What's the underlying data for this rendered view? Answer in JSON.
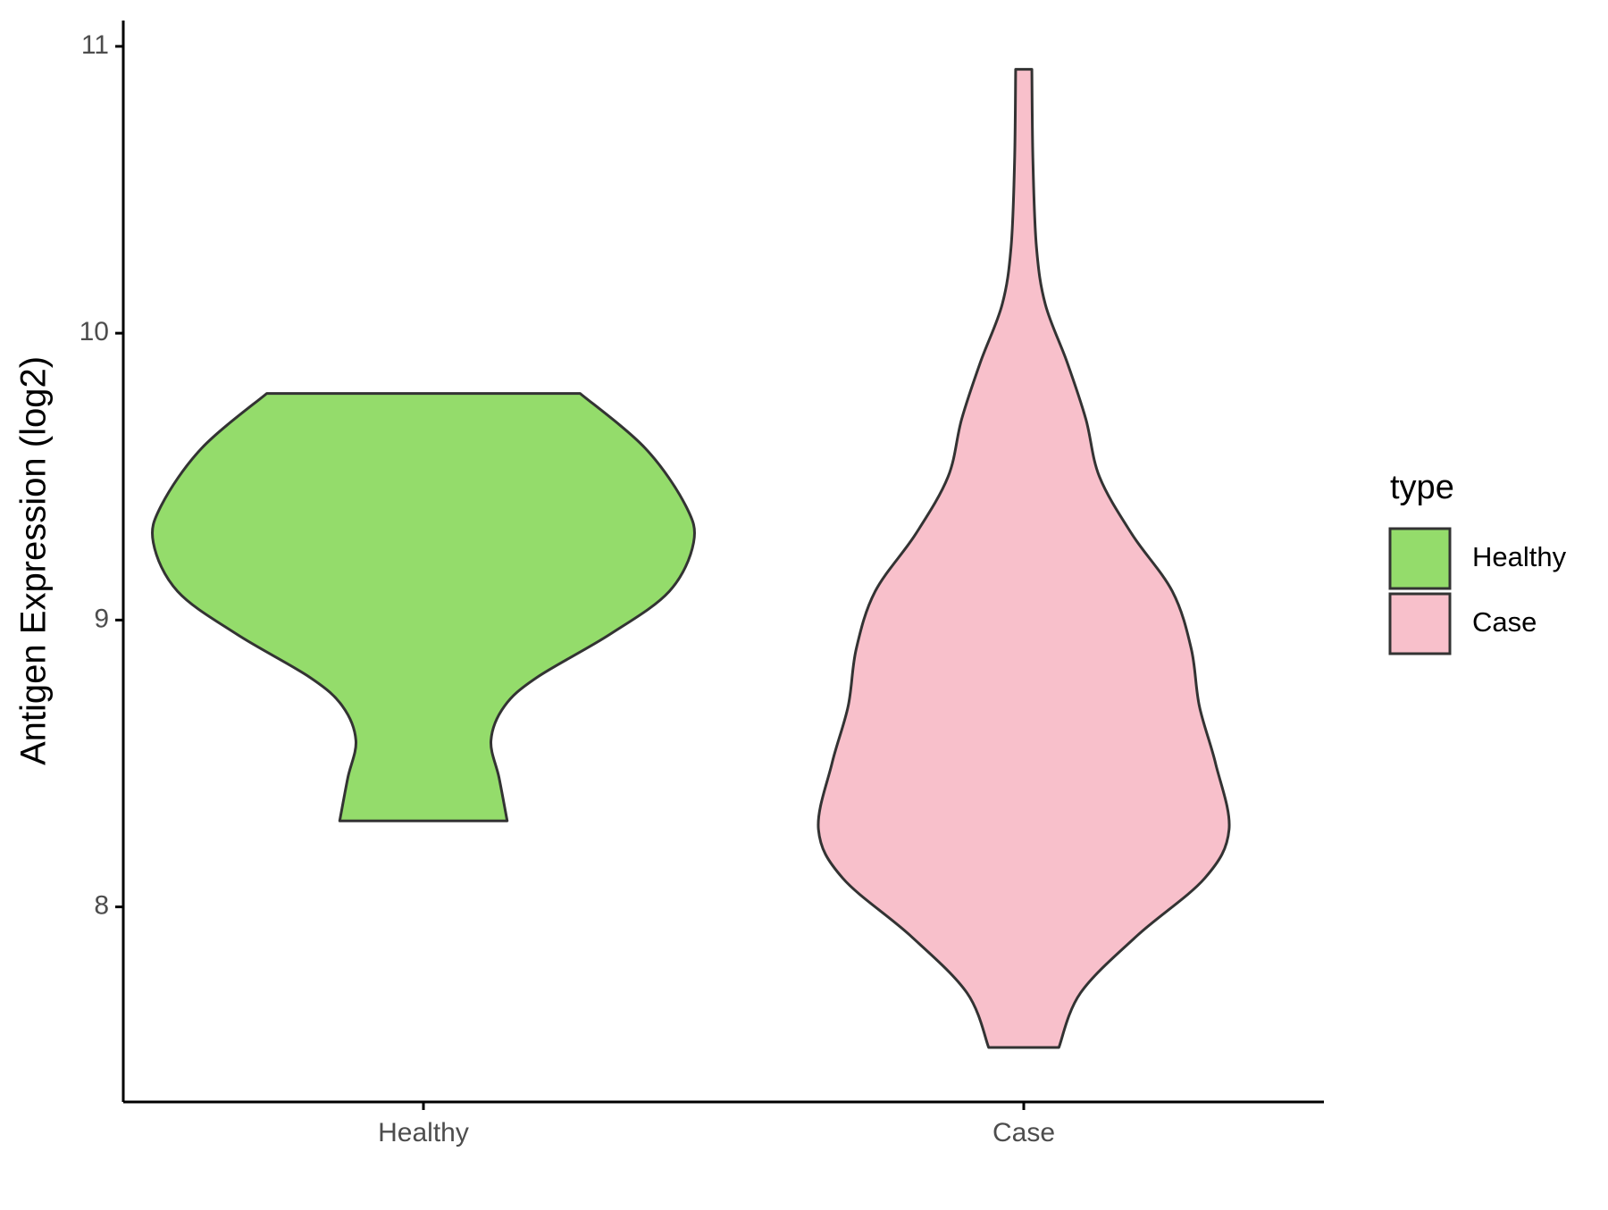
{
  "chart_data": {
    "type": "violin",
    "y_label": "Antigen Expression (log2)",
    "categories": [
      "Healthy",
      "Case"
    ],
    "legend_title": "type",
    "legend_position": "right",
    "ylim": [
      7.32,
      11.09
    ],
    "yticks": [
      8,
      9,
      10,
      11
    ],
    "series": [
      {
        "name": "Healthy",
        "color": "#94dc6b",
        "y": [
          9.79,
          9.6,
          9.4,
          9.27,
          9.1,
          8.95,
          8.8,
          8.7,
          8.58,
          8.45,
          8.3
        ],
        "width": [
          0.58,
          0.82,
          0.97,
          1.0,
          0.91,
          0.69,
          0.42,
          0.3,
          0.25,
          0.28,
          0.31
        ]
      },
      {
        "name": "Case",
        "color": "#f8c0cb",
        "y": [
          10.92,
          10.6,
          10.3,
          10.1,
          9.9,
          9.7,
          9.5,
          9.3,
          9.1,
          8.9,
          8.7,
          8.5,
          8.27,
          8.1,
          7.9,
          7.7,
          7.51
        ],
        "width": [
          0.03,
          0.034,
          0.047,
          0.08,
          0.16,
          0.23,
          0.28,
          0.4,
          0.55,
          0.62,
          0.65,
          0.71,
          0.76,
          0.67,
          0.42,
          0.21,
          0.13
        ]
      }
    ]
  }
}
